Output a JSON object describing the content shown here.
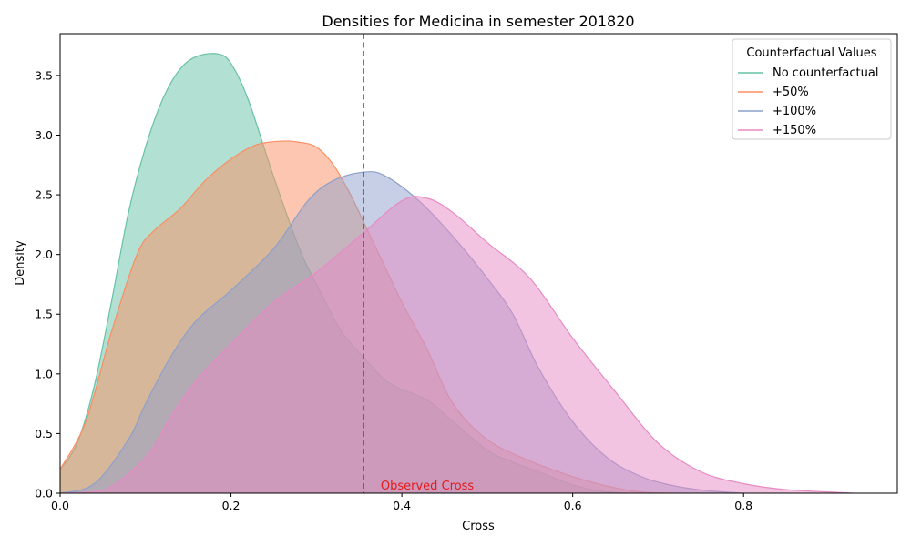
{
  "chart_data": {
    "type": "area",
    "title": "Densities for Medicina in semester 201820",
    "xlabel": "Cross",
    "ylabel": "Density",
    "xlim": [
      0.0,
      0.98
    ],
    "ylim": [
      0.0,
      3.85
    ],
    "x_ticks": [
      "0.0",
      "0.2",
      "0.4",
      "0.6",
      "0.8"
    ],
    "y_ticks": [
      "0.0",
      "0.5",
      "1.0",
      "1.5",
      "2.0",
      "2.5",
      "3.0",
      "3.5"
    ],
    "grid": false,
    "legend": {
      "title": "Counterfactual Values",
      "placement": "top-right"
    },
    "reference_line": {
      "x": 0.355,
      "color": "#e41a1c",
      "label": "Observed Cross"
    },
    "series": [
      {
        "name": "No counterfactual",
        "color": "#66c2a5",
        "x": [
          0.0,
          0.02,
          0.04,
          0.06,
          0.08,
          0.1,
          0.12,
          0.14,
          0.16,
          0.185,
          0.2,
          0.22,
          0.25,
          0.28,
          0.3,
          0.33,
          0.36,
          0.38,
          0.4,
          0.43,
          0.46,
          0.5,
          0.53,
          0.56,
          0.6,
          0.63,
          0.66
        ],
        "y": [
          0.2,
          0.42,
          0.9,
          1.6,
          2.35,
          2.9,
          3.3,
          3.55,
          3.66,
          3.68,
          3.6,
          3.3,
          2.65,
          2.05,
          1.75,
          1.35,
          1.1,
          0.95,
          0.87,
          0.78,
          0.6,
          0.36,
          0.26,
          0.18,
          0.07,
          0.02,
          0.0
        ]
      },
      {
        "name": "+50%",
        "color": "#fc8d62",
        "x": [
          0.0,
          0.03,
          0.06,
          0.09,
          0.11,
          0.14,
          0.17,
          0.2,
          0.23,
          0.26,
          0.28,
          0.3,
          0.32,
          0.34,
          0.36,
          0.38,
          0.4,
          0.43,
          0.46,
          0.5,
          0.55,
          0.6,
          0.64,
          0.68,
          0.72
        ],
        "y": [
          0.2,
          0.6,
          1.35,
          2.0,
          2.2,
          2.38,
          2.62,
          2.8,
          2.92,
          2.95,
          2.94,
          2.9,
          2.75,
          2.5,
          2.2,
          1.9,
          1.6,
          1.2,
          0.75,
          0.45,
          0.27,
          0.14,
          0.06,
          0.01,
          0.0
        ]
      },
      {
        "name": "+100%",
        "color": "#8da0cb",
        "x": [
          0.0,
          0.04,
          0.08,
          0.1,
          0.13,
          0.16,
          0.2,
          0.25,
          0.29,
          0.32,
          0.355,
          0.38,
          0.42,
          0.46,
          0.5,
          0.53,
          0.56,
          0.6,
          0.64,
          0.68,
          0.72,
          0.76,
          0.8
        ],
        "y": [
          0.0,
          0.08,
          0.45,
          0.75,
          1.15,
          1.45,
          1.7,
          2.05,
          2.45,
          2.62,
          2.69,
          2.66,
          2.45,
          2.15,
          1.8,
          1.5,
          1.05,
          0.6,
          0.3,
          0.14,
          0.06,
          0.02,
          0.0
        ]
      },
      {
        "name": "+150%",
        "color": "#e78ac3",
        "x": [
          0.0,
          0.05,
          0.1,
          0.13,
          0.16,
          0.2,
          0.25,
          0.3,
          0.35,
          0.4,
          0.43,
          0.46,
          0.5,
          0.55,
          0.6,
          0.65,
          0.7,
          0.75,
          0.8,
          0.85,
          0.93
        ],
        "y": [
          0.0,
          0.02,
          0.3,
          0.65,
          0.95,
          1.25,
          1.6,
          1.85,
          2.15,
          2.45,
          2.47,
          2.35,
          2.1,
          1.8,
          1.3,
          0.85,
          0.42,
          0.18,
          0.08,
          0.03,
          0.0
        ]
      }
    ]
  }
}
